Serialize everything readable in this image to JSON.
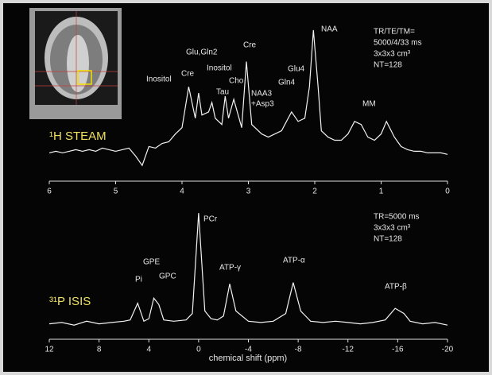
{
  "chart_data": [
    {
      "type": "line",
      "title": "¹H STEAM",
      "color": "#f2f2f2",
      "x": [
        6.0,
        5.9,
        5.8,
        5.7,
        5.6,
        5.5,
        5.4,
        5.3,
        5.2,
        5.1,
        5.0,
        4.9,
        4.8,
        4.7,
        4.6,
        4.5,
        4.4,
        4.3,
        4.2,
        4.1,
        4.0,
        3.9,
        3.8,
        3.75,
        3.7,
        3.6,
        3.55,
        3.5,
        3.4,
        3.35,
        3.3,
        3.22,
        3.1,
        3.03,
        2.95,
        2.8,
        2.7,
        2.6,
        2.5,
        2.45,
        2.35,
        2.25,
        2.15,
        2.08,
        2.02,
        1.95,
        1.9,
        1.8,
        1.7,
        1.6,
        1.5,
        1.4,
        1.3,
        1.2,
        1.1,
        1.0,
        0.92,
        0.8,
        0.7,
        0.6,
        0.5,
        0.4,
        0.3,
        0.2,
        0.1,
        0.0
      ],
      "values": [
        18,
        19,
        18,
        19,
        20,
        19,
        20,
        19,
        21,
        20,
        19,
        20,
        21,
        16,
        10,
        22,
        21,
        24,
        25,
        30,
        34,
        60,
        40,
        56,
        42,
        44,
        50,
        40,
        36,
        54,
        40,
        52,
        34,
        76,
        36,
        30,
        28,
        30,
        32,
        36,
        44,
        38,
        40,
        60,
        96,
        60,
        32,
        28,
        26,
        26,
        30,
        38,
        36,
        28,
        26,
        30,
        38,
        28,
        22,
        20,
        19,
        19,
        18,
        18,
        18,
        17
      ],
      "xlim": [
        6,
        0
      ],
      "ylim": [
        0,
        100
      ],
      "xticks": [
        6,
        5,
        4,
        3,
        2,
        1,
        0
      ],
      "annotations": [
        "Inositol",
        "Cre",
        "Glu,Gln2",
        "Inositol",
        "Tau",
        "Cho",
        "Cre",
        "NAA3",
        "+Asp3",
        "Gln4",
        "Glu4",
        "NAA",
        "MM",
        "TR/TE/TM=",
        "5000/4/33 ms",
        "3x3x3 cm³",
        "NT=128"
      ]
    },
    {
      "type": "line",
      "title": "³¹P ISIS",
      "color": "#f2f2f2",
      "xlabel": "chemical shift  (ppm)",
      "x": [
        12,
        11,
        10,
        9,
        8,
        7,
        6,
        5.5,
        4.9,
        4.4,
        4,
        3.6,
        3.2,
        2.8,
        2,
        1,
        0.5,
        0,
        -0.5,
        -1,
        -1.5,
        -2,
        -2.5,
        -3,
        -4,
        -5,
        -6,
        -7,
        -7.6,
        -8.2,
        -9,
        -10,
        -11,
        -12,
        -13,
        -14,
        -15,
        -15.8,
        -16.5,
        -17,
        -18,
        -19,
        -20
      ],
      "values": [
        12,
        13,
        11,
        14,
        12,
        13,
        14,
        15,
        28,
        14,
        16,
        32,
        27,
        15,
        14,
        15,
        20,
        98,
        22,
        16,
        15,
        18,
        43,
        22,
        14,
        13,
        14,
        20,
        44,
        22,
        14,
        13,
        14,
        13,
        12,
        13,
        15,
        24,
        20,
        14,
        12,
        13,
        11
      ],
      "xlim": [
        12,
        -20
      ],
      "ylim": [
        0,
        100
      ],
      "xticks": [
        12,
        8,
        4,
        0,
        -4,
        -8,
        -12,
        -16,
        -20
      ],
      "annotations": [
        "PCr",
        "GPE",
        "Pi",
        "GPC",
        "ATP-γ",
        "ATP-α",
        "ATP-β",
        "TR=5000 ms",
        "3x3x3 cm³",
        "NT=128"
      ]
    }
  ]
}
